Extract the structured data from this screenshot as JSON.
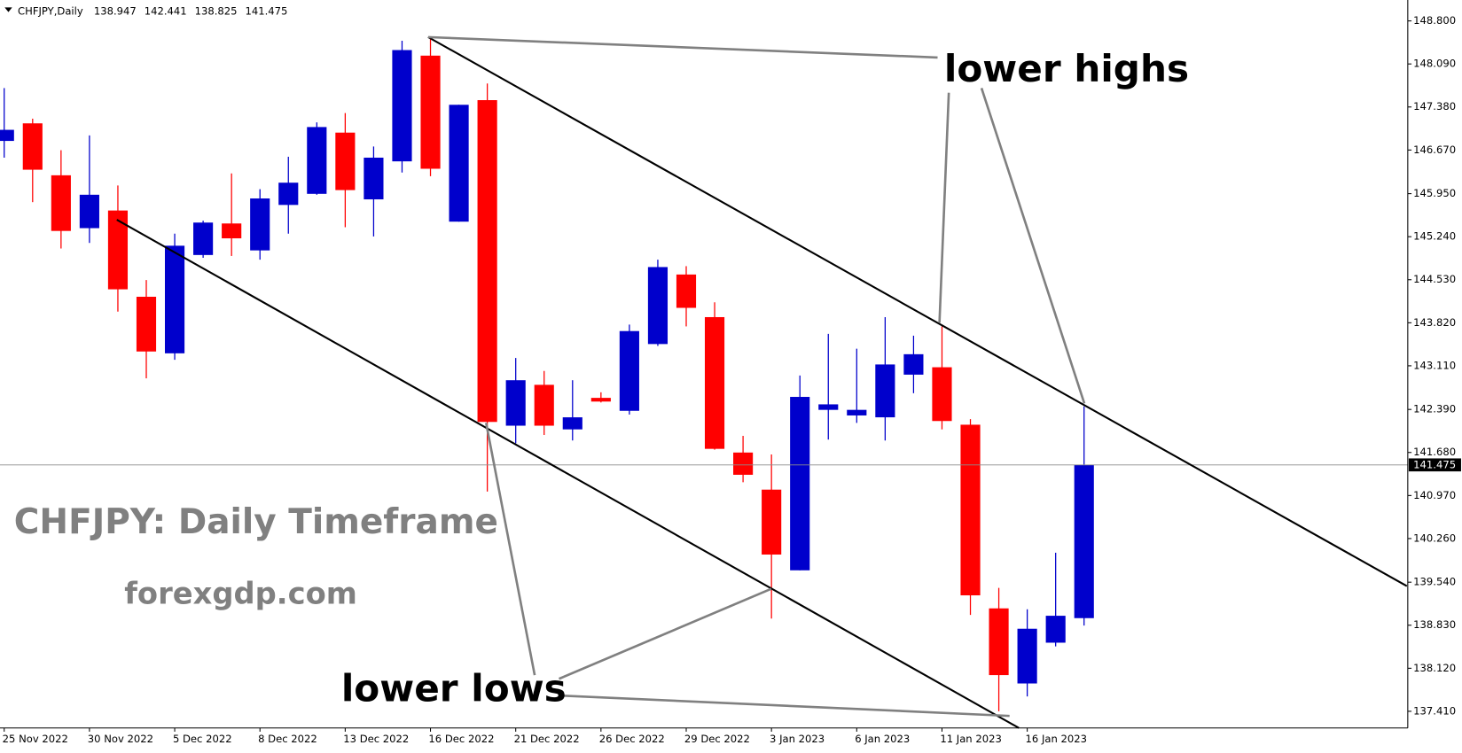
{
  "chart_data": {
    "type": "candlestick",
    "title": "CHFJPY,Daily",
    "annotations": [
      "lower highs",
      "lower lows",
      "CHFJPY: Daily Timeframe",
      "forexgdp.com"
    ],
    "categories": [
      "25 Nov 2022",
      null,
      null,
      "30 Nov 2022",
      null,
      null,
      "5 Dec 2022",
      null,
      null,
      "8 Dec 2022",
      null,
      null,
      "13 Dec 2022",
      null,
      null,
      "16 Dec 2022",
      null,
      null,
      "21 Dec 2022",
      null,
      null,
      "26 Dec 2022",
      null,
      null,
      "29 Dec 2022",
      null,
      null,
      "3 Jan 2023",
      null,
      null,
      "6 Jan 2023",
      null,
      null,
      "11 Jan 2023",
      null,
      null,
      "16 Jan 2023",
      null,
      null
    ],
    "open": [
      146.82,
      147.11,
      146.253,
      145.381,
      145.672,
      144.249,
      143.316,
      144.938,
      145.458,
      145.014,
      145.764,
      145.947,
      146.957,
      145.856,
      146.483,
      148.227,
      145.488,
      147.493,
      142.122,
      142.796,
      142.061,
      142.581,
      142.367,
      143.469,
      144.616,
      143.913,
      141.679,
      141.067,
      139.736,
      142.383,
      142.291,
      142.26,
      142.964,
      143.086,
      142.138,
      139.108,
      137.869,
      138.542,
      138.947
    ],
    "high": [
      147.692,
      147.187,
      146.667,
      146.911,
      146.085,
      144.525,
      145.29,
      145.504,
      146.284,
      146.024,
      146.559,
      147.126,
      147.279,
      146.728,
      148.472,
      148.533,
      147.416,
      147.768,
      143.239,
      143.025,
      142.872,
      142.673,
      143.79,
      144.861,
      144.754,
      144.157,
      141.954,
      141.648,
      142.949,
      143.637,
      143.392,
      143.913,
      143.607,
      143.76,
      142.23,
      139.445,
      139.093,
      140.026,
      142.441
    ],
    "low": [
      146.544,
      145.81,
      145.045,
      145.137,
      144.004,
      142.903,
      143.209,
      144.892,
      144.922,
      144.861,
      145.29,
      145.932,
      145.397,
      145.244,
      146.299,
      146.238,
      145.488,
      141.036,
      141.832,
      141.969,
      141.878,
      142.505,
      142.306,
      143.438,
      143.76,
      141.725,
      141.189,
      138.94,
      139.736,
      141.893,
      142.168,
      141.878,
      142.658,
      142.061,
      139.001,
      137.41,
      137.655,
      138.481,
      138.825
    ],
    "close": [
      147.003,
      146.345,
      145.335,
      145.932,
      144.372,
      143.346,
      145.091,
      145.473,
      145.213,
      145.871,
      146.131,
      147.049,
      146.009,
      146.544,
      148.319,
      146.361,
      147.416,
      142.184,
      142.872,
      142.122,
      142.26,
      142.52,
      143.683,
      144.739,
      144.066,
      141.74,
      141.312,
      139.996,
      142.597,
      142.474,
      142.383,
      143.132,
      143.301,
      142.199,
      139.323,
      138.007,
      138.772,
      138.986,
      141.475
    ],
    "up_color": "#0000cc",
    "down_color": "#ff0000",
    "ylim": [
      137.135,
      149.145
    ],
    "yticks": [
      {
        "value": 148.8,
        "label": "148.800"
      },
      {
        "value": 148.09,
        "label": "148.090"
      },
      {
        "value": 147.38,
        "label": "147.380"
      },
      {
        "value": 146.67,
        "label": "146.670"
      },
      {
        "value": 145.95,
        "label": "145.950"
      },
      {
        "value": 145.24,
        "label": "145.240"
      },
      {
        "value": 144.53,
        "label": "144.530"
      },
      {
        "value": 143.82,
        "label": "143.820"
      },
      {
        "value": 143.11,
        "label": "143.110"
      },
      {
        "value": 142.39,
        "label": "142.390"
      },
      {
        "value": 141.68,
        "label": "141.680"
      },
      {
        "value": 140.97,
        "label": "140.970"
      },
      {
        "value": 140.26,
        "label": "140.260"
      },
      {
        "value": 139.54,
        "label": "139.540"
      },
      {
        "value": 138.83,
        "label": "138.830"
      },
      {
        "value": 138.12,
        "label": "138.120"
      },
      {
        "value": 137.41,
        "label": "137.410"
      }
    ],
    "grid": false
  }
}
